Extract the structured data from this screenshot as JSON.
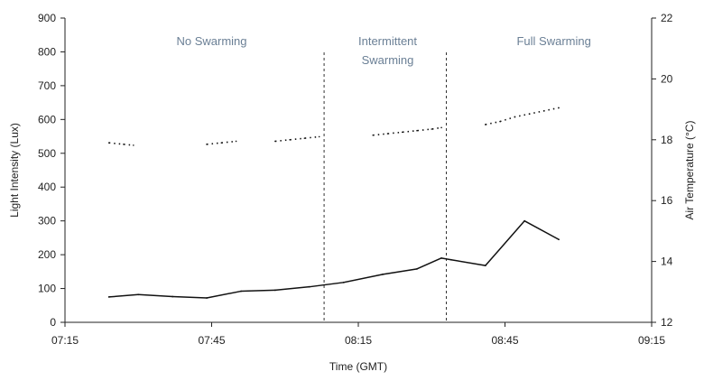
{
  "chart_data": {
    "type": "line",
    "xlabel": "Time (GMT)",
    "ylabel": "Light Intensity (Lux)",
    "y2label": "Air Temperature (°C)",
    "x_ticks": [
      "07:15",
      "07:45",
      "08:15",
      "08:45",
      "09:15"
    ],
    "y_ticks": [
      0,
      100,
      200,
      300,
      400,
      500,
      600,
      700,
      800,
      900
    ],
    "y2_ticks": [
      12,
      14,
      16,
      18,
      20,
      22
    ],
    "xlim": [
      "07:15",
      "09:15"
    ],
    "ylim": [
      0,
      900
    ],
    "y2lim": [
      12,
      22
    ],
    "grid": false,
    "phase_dividers": [
      "08:08",
      "08:33"
    ],
    "phase_labels": [
      {
        "lines": [
          "No Swarming"
        ],
        "x": "07:45"
      },
      {
        "lines": [
          "Intermittent",
          "Swarming"
        ],
        "x": "08:21"
      },
      {
        "lines": [
          "Full Swarming"
        ],
        "x": "08:55"
      }
    ],
    "series": [
      {
        "axis": "left",
        "style": "solid",
        "x": [
          "07:24",
          "07:30",
          "07:37",
          "07:44",
          "07:51",
          "07:58",
          "08:05",
          "08:12",
          "08:20",
          "08:27",
          "08:32",
          "08:34",
          "08:41",
          "08:49",
          "08:56"
        ],
        "values": [
          75,
          82,
          76,
          72,
          92,
          95,
          105,
          118,
          142,
          158,
          190,
          185,
          168,
          300,
          245
        ]
      },
      {
        "axis": "right",
        "style": "dotted",
        "x": [
          "07:24",
          "07:27",
          "07:29",
          "07:44",
          "07:47",
          "07:50",
          "07:58",
          "08:01",
          "08:04",
          "08:07",
          "08:18",
          "08:21",
          "08:24",
          "08:27",
          "08:30",
          "08:32",
          "08:41",
          "08:44",
          "08:47",
          "08:50",
          "08:53",
          "08:56"
        ],
        "values": [
          17.9,
          17.85,
          17.82,
          17.85,
          17.9,
          17.95,
          17.95,
          18.0,
          18.05,
          18.1,
          18.15,
          18.2,
          18.25,
          18.3,
          18.35,
          18.4,
          18.5,
          18.6,
          18.75,
          18.85,
          18.95,
          19.05
        ],
        "segments": [
          [
            0,
            2
          ],
          [
            3,
            5
          ],
          [
            6,
            9
          ],
          [
            10,
            15
          ],
          [
            16,
            21
          ]
        ]
      }
    ]
  }
}
